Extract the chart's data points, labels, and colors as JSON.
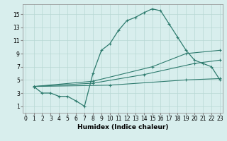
{
  "xlabel": "Humidex (Indice chaleur)",
  "bg_color": "#d8eeed",
  "line_color": "#2e7b6e",
  "xlim": [
    -0.3,
    23.3
  ],
  "ylim": [
    0,
    16.5
  ],
  "xticks": [
    0,
    1,
    2,
    3,
    4,
    5,
    6,
    7,
    8,
    9,
    10,
    11,
    12,
    13,
    14,
    15,
    16,
    17,
    18,
    19,
    20,
    21,
    22,
    23
  ],
  "yticks": [
    1,
    3,
    5,
    7,
    9,
    11,
    13,
    15
  ],
  "grid_color": "#b8d8d4",
  "main_x": [
    1,
    2,
    3,
    4,
    5,
    6,
    7,
    8,
    9,
    10,
    11,
    12,
    13,
    14,
    15,
    16,
    17,
    18,
    19,
    20,
    21,
    22,
    23
  ],
  "main_y": [
    4.0,
    3.0,
    3.0,
    2.5,
    2.5,
    1.8,
    1.0,
    6.0,
    9.5,
    10.5,
    12.5,
    14.0,
    14.5,
    15.2,
    15.8,
    15.5,
    13.5,
    11.5,
    9.5,
    8.0,
    7.5,
    7.0,
    5.0
  ],
  "line1_x": [
    1,
    8,
    15,
    19,
    23
  ],
  "line1_y": [
    4.0,
    4.8,
    7.0,
    9.0,
    9.5
  ],
  "line2_x": [
    1,
    8,
    14,
    20,
    23
  ],
  "line2_y": [
    4.0,
    4.5,
    5.8,
    7.5,
    8.0
  ],
  "line3_x": [
    1,
    10,
    19,
    23
  ],
  "line3_y": [
    4.0,
    4.2,
    5.0,
    5.2
  ]
}
